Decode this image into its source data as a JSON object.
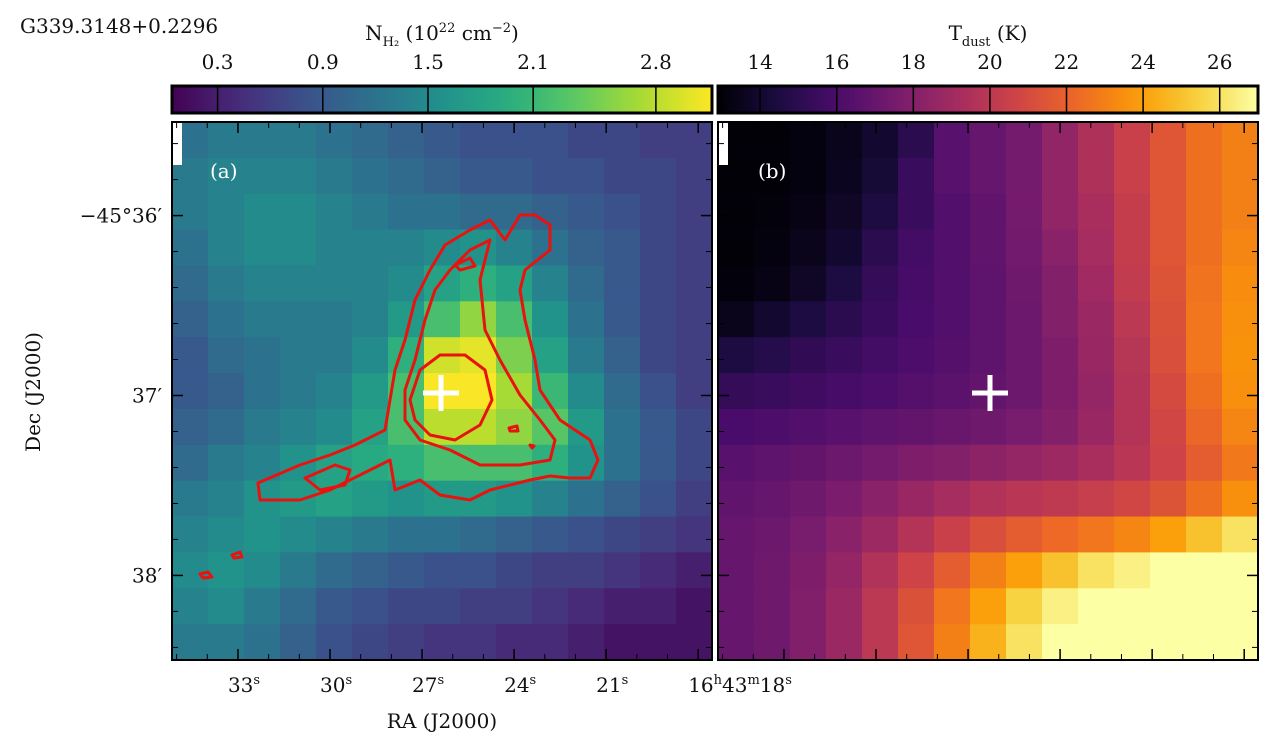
{
  "chart_data": [
    {
      "type": "heatmap",
      "title": "G339.3148+0.2296",
      "panel_label": "(a)",
      "colormap": "viridis",
      "colorbar_label": [
        {
          "text": "N"
        },
        {
          "text": "H₂",
          "shift": "sub"
        },
        {
          "text": " (10"
        },
        {
          "text": "22",
          "shift": "sup"
        },
        {
          "text": " cm"
        },
        {
          "text": "−2",
          "shift": "sup"
        },
        {
          "text": ")"
        }
      ],
      "clim": [
        0.04,
        3.12
      ],
      "cticks": [
        0.3,
        0.9,
        1.5,
        2.1,
        2.8
      ],
      "xlabel": "RA (J2000)",
      "ylabel": "Dec (J2000)",
      "xlim": [
        35.15,
        17.55
      ],
      "xticks": [
        {
          "value": 33,
          "label": [
            {
              "text": "33"
            },
            {
              "text": "s",
              "shift": "sup"
            }
          ]
        },
        {
          "value": 30,
          "label": [
            {
              "text": "30"
            },
            {
              "text": "s",
              "shift": "sup"
            }
          ]
        },
        {
          "value": 27,
          "label": [
            {
              "text": "27"
            },
            {
              "text": "s",
              "shift": "sup"
            }
          ]
        },
        {
          "value": 24,
          "label": [
            {
              "text": "24"
            },
            {
              "text": "s",
              "shift": "sup"
            }
          ]
        },
        {
          "value": 21,
          "label": [
            {
              "text": "21"
            },
            {
              "text": "s",
              "shift": "sup"
            }
          ]
        },
        {
          "value": 18,
          "label": [
            {
              "text": "16"
            },
            {
              "text": "h",
              "shift": "sup"
            },
            {
              "text": "43"
            },
            {
              "text": "m",
              "shift": "sup"
            },
            {
              "text": "18"
            },
            {
              "text": "s",
              "shift": "sup"
            }
          ]
        }
      ],
      "ylim": [
        35.48,
        38.47
      ],
      "yticks": [
        {
          "value": 36,
          "label": "−45°36′"
        },
        {
          "value": 37,
          "label": "37′"
        },
        {
          "value": 38,
          "label": "38′"
        }
      ],
      "values": [
        [
          1.2,
          1.3,
          1.3,
          1.3,
          1.2,
          1.1,
          1.0,
          0.9,
          0.8,
          0.8,
          0.8,
          0.7,
          0.7,
          0.6,
          0.6
        ],
        [
          1.3,
          1.4,
          1.4,
          1.4,
          1.3,
          1.2,
          1.1,
          1.0,
          0.9,
          0.9,
          0.8,
          0.8,
          0.7,
          0.7,
          0.6
        ],
        [
          1.3,
          1.4,
          1.5,
          1.5,
          1.4,
          1.3,
          1.2,
          1.2,
          1.1,
          1.1,
          1.0,
          0.9,
          0.8,
          0.7,
          0.6
        ],
        [
          1.2,
          1.4,
          1.5,
          1.5,
          1.4,
          1.4,
          1.4,
          1.5,
          1.6,
          1.4,
          1.2,
          1.0,
          0.9,
          0.7,
          0.6
        ],
        [
          1.1,
          1.3,
          1.4,
          1.4,
          1.4,
          1.4,
          1.5,
          1.8,
          2.0,
          1.8,
          1.4,
          1.1,
          0.9,
          0.7,
          0.6
        ],
        [
          1.0,
          1.2,
          1.3,
          1.3,
          1.3,
          1.4,
          1.7,
          2.2,
          2.6,
          2.2,
          1.6,
          1.2,
          0.9,
          0.7,
          0.6
        ],
        [
          0.9,
          1.1,
          1.2,
          1.3,
          1.3,
          1.5,
          2.0,
          2.9,
          3.0,
          2.5,
          1.8,
          1.3,
          1.0,
          0.7,
          0.6
        ],
        [
          0.9,
          1.0,
          1.2,
          1.3,
          1.4,
          1.7,
          2.2,
          3.1,
          3.1,
          2.7,
          2.1,
          1.5,
          1.1,
          0.8,
          0.6
        ],
        [
          1.0,
          1.1,
          1.3,
          1.4,
          1.5,
          1.8,
          2.2,
          2.8,
          2.8,
          2.6,
          2.3,
          1.7,
          1.2,
          0.9,
          0.7
        ],
        [
          1.1,
          1.3,
          1.4,
          1.6,
          1.8,
          1.9,
          2.0,
          2.2,
          2.2,
          2.2,
          2.0,
          1.6,
          1.2,
          0.9,
          0.7
        ],
        [
          1.3,
          1.4,
          1.6,
          1.7,
          1.8,
          1.7,
          1.6,
          1.7,
          1.7,
          1.6,
          1.4,
          1.2,
          1.0,
          0.8,
          0.6
        ],
        [
          1.4,
          1.5,
          1.6,
          1.5,
          1.4,
          1.3,
          1.2,
          1.2,
          1.1,
          1.0,
          0.9,
          0.8,
          0.7,
          0.6,
          0.5
        ],
        [
          1.5,
          1.6,
          1.5,
          1.3,
          1.1,
          1.0,
          0.9,
          0.8,
          0.8,
          0.7,
          0.6,
          0.6,
          0.5,
          0.4,
          0.3
        ],
        [
          1.4,
          1.5,
          1.3,
          1.1,
          0.9,
          0.8,
          0.7,
          0.7,
          0.6,
          0.6,
          0.5,
          0.4,
          0.3,
          0.3,
          0.2
        ],
        [
          1.3,
          1.3,
          1.2,
          1.0,
          0.8,
          0.7,
          0.6,
          0.5,
          0.5,
          0.4,
          0.4,
          0.3,
          0.2,
          0.2,
          0.2
        ]
      ]
    },
    {
      "type": "heatmap",
      "panel_label": "(b)",
      "colormap": "inferno",
      "colorbar_label": [
        {
          "text": "T"
        },
        {
          "text": "dust",
          "shift": "sub"
        },
        {
          "text": " (K)"
        }
      ],
      "clim": [
        12.9,
        27
      ],
      "cticks": [
        14,
        16,
        18,
        20,
        22,
        24,
        26
      ],
      "values": [
        [
          13.0,
          13.0,
          13.2,
          13.5,
          14,
          15,
          16.5,
          17,
          17.5,
          18.5,
          19.5,
          20.5,
          21.5,
          22.5,
          23
        ],
        [
          13.0,
          13.0,
          13.2,
          13.6,
          14.2,
          15.5,
          16.5,
          17,
          17.5,
          18.5,
          19.5,
          20.5,
          21.5,
          22.5,
          23
        ],
        [
          13,
          13.1,
          13.3,
          13.8,
          14.5,
          15.5,
          16.3,
          16.8,
          17.5,
          18.5,
          19.3,
          20.3,
          21.5,
          22.5,
          23
        ],
        [
          13,
          13.2,
          13.5,
          14,
          15,
          15.8,
          16.3,
          16.8,
          17.4,
          18.2,
          19.2,
          20.3,
          21.5,
          22.5,
          23.2
        ],
        [
          13.1,
          13.3,
          13.8,
          14.5,
          15.3,
          15.9,
          16.3,
          16.7,
          17.3,
          18,
          19,
          20.2,
          21.4,
          22.6,
          23.4
        ],
        [
          13.5,
          14,
          14.5,
          15,
          15.5,
          16,
          16.3,
          16.7,
          17.2,
          18,
          18.8,
          20,
          21.3,
          22.7,
          23.5
        ],
        [
          14.5,
          14.8,
          15.2,
          15.5,
          15.8,
          16.1,
          16.4,
          16.7,
          17.2,
          17.8,
          18.7,
          19.8,
          21.2,
          22.7,
          23.6
        ],
        [
          15.3,
          15.5,
          15.7,
          15.9,
          16.1,
          16.4,
          16.6,
          16.9,
          17.2,
          17.8,
          18.6,
          19.7,
          21,
          22.5,
          23.5
        ],
        [
          16,
          16.1,
          16.3,
          16.5,
          16.7,
          16.9,
          17.1,
          17.3,
          17.6,
          18,
          18.7,
          19.7,
          20.8,
          22.2,
          23.2
        ],
        [
          16.5,
          16.7,
          16.9,
          17.2,
          17.5,
          17.8,
          18,
          18.3,
          18.6,
          18.9,
          19.3,
          19.9,
          20.7,
          21.8,
          22.8
        ],
        [
          16.8,
          17,
          17.3,
          17.7,
          18.2,
          18.7,
          19.2,
          19.6,
          19.9,
          20.1,
          20.4,
          20.8,
          21.4,
          22.5,
          23.5
        ],
        [
          17,
          17.2,
          17.6,
          18.2,
          18.9,
          19.7,
          20.5,
          21.2,
          21.8,
          22.3,
          22.7,
          23.2,
          24,
          25,
          26
        ],
        [
          17,
          17.3,
          17.8,
          18.6,
          19.6,
          20.7,
          21.8,
          23,
          24,
          25,
          26,
          26.5,
          27,
          27,
          27
        ],
        [
          17,
          17.3,
          17.9,
          18.8,
          20,
          21.3,
          22.7,
          24,
          25.5,
          26.5,
          27,
          27,
          27,
          27,
          27
        ],
        [
          17,
          17.3,
          17.9,
          18.8,
          20,
          21.5,
          23,
          24.5,
          26,
          27,
          27,
          27,
          27,
          27,
          27
        ]
      ]
    }
  ]
}
